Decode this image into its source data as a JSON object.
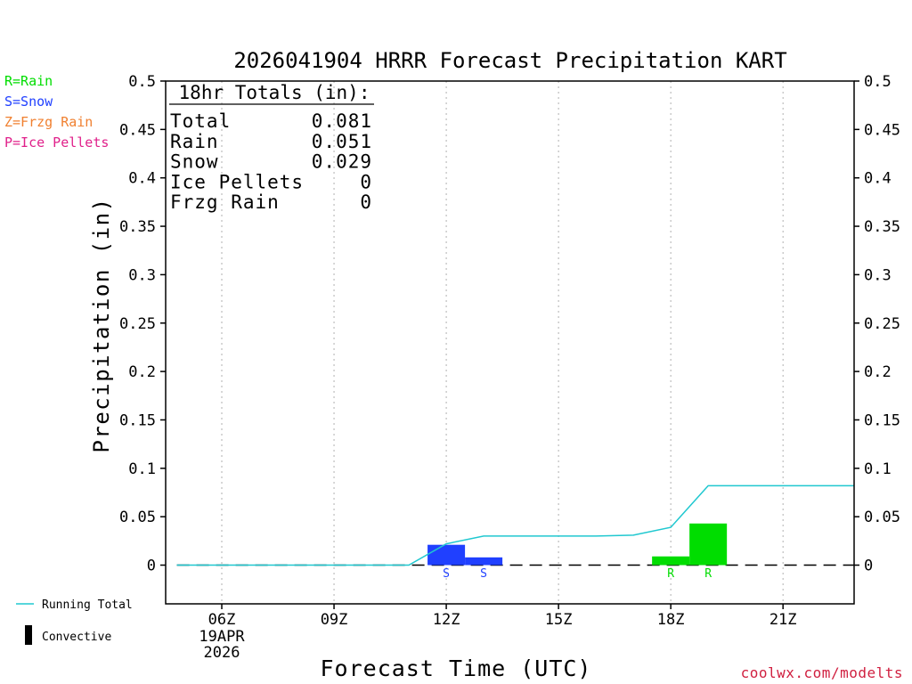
{
  "chart_data": {
    "type": "bar",
    "title": "2026041904 HRRR Forecast Precipitation KART",
    "xlabel": "Forecast Time (UTC)",
    "ylabel": "Precipitation (in)",
    "ylim": [
      -0.04,
      0.5
    ],
    "xlim": [
      4.5,
      22.9
    ],
    "y_ticks": [
      {
        "v": 0,
        "label": "0"
      },
      {
        "v": 0.05,
        "label": "0.05"
      },
      {
        "v": 0.1,
        "label": "0.1"
      },
      {
        "v": 0.15,
        "label": "0.15"
      },
      {
        "v": 0.2,
        "label": "0.2"
      },
      {
        "v": 0.25,
        "label": "0.25"
      },
      {
        "v": 0.3,
        "label": "0.3"
      },
      {
        "v": 0.35,
        "label": "0.35"
      },
      {
        "v": 0.4,
        "label": "0.4"
      },
      {
        "v": 0.45,
        "label": "0.45"
      },
      {
        "v": 0.5,
        "label": "0.5"
      }
    ],
    "x_ticks": [
      {
        "hour": 6,
        "label": "06Z"
      },
      {
        "hour": 9,
        "label": "09Z"
      },
      {
        "hour": 12,
        "label": "12Z"
      },
      {
        "hour": 15,
        "label": "15Z"
      },
      {
        "hour": 18,
        "label": "18Z"
      },
      {
        "hour": 21,
        "label": "21Z"
      }
    ],
    "date_label": [
      "19APR",
      "2026"
    ],
    "grid": "vertical-dotted",
    "bars": [
      {
        "start": 11.5,
        "end": 12.5,
        "value": 0.021,
        "type": "S",
        "color": "#2040ff"
      },
      {
        "start": 12.5,
        "end": 13.5,
        "value": 0.008,
        "type": "S",
        "color": "#2040ff"
      },
      {
        "start": 17.5,
        "end": 18.5,
        "value": 0.009,
        "type": "R",
        "color": "#00dd00"
      },
      {
        "start": 18.5,
        "end": 19.5,
        "value": 0.043,
        "type": "R",
        "color": "#00dd00"
      }
    ],
    "running_total": {
      "name": "Running Total",
      "color": "#20c8d0",
      "points": [
        [
          4.8,
          0
        ],
        [
          11.0,
          0
        ],
        [
          12.0,
          0.022
        ],
        [
          13.0,
          0.03
        ],
        [
          16.0,
          0.03
        ],
        [
          17.0,
          0.031
        ],
        [
          18.0,
          0.039
        ],
        [
          19.0,
          0.082
        ],
        [
          22.9,
          0.082
        ]
      ]
    },
    "totals_box": {
      "heading": "18hr Totals (in):",
      "rows": [
        {
          "label": "Total",
          "value": "0.081"
        },
        {
          "label": "Rain",
          "value": "0.051"
        },
        {
          "label": "Snow",
          "value": "0.029"
        },
        {
          "label": "Ice Pellets",
          "value": "0"
        },
        {
          "label": "Frzg Rain",
          "value": "0"
        }
      ]
    },
    "type_legend": [
      {
        "text": "R=Rain",
        "color": "#00dd00"
      },
      {
        "text": "S=Snow",
        "color": "#2040ff"
      },
      {
        "text": "Z=Frzg Rain",
        "color": "#f08030"
      },
      {
        "text": "P=Ice Pellets",
        "color": "#e0208a"
      }
    ],
    "bottom_legend": [
      {
        "text": "Running Total",
        "symbol": "line",
        "color": "#20c8d0"
      },
      {
        "text": "Convective",
        "symbol": "block",
        "color": "#000000"
      }
    ],
    "credit": "coolwx.com/modelts",
    "credit_color": "#d02040"
  }
}
